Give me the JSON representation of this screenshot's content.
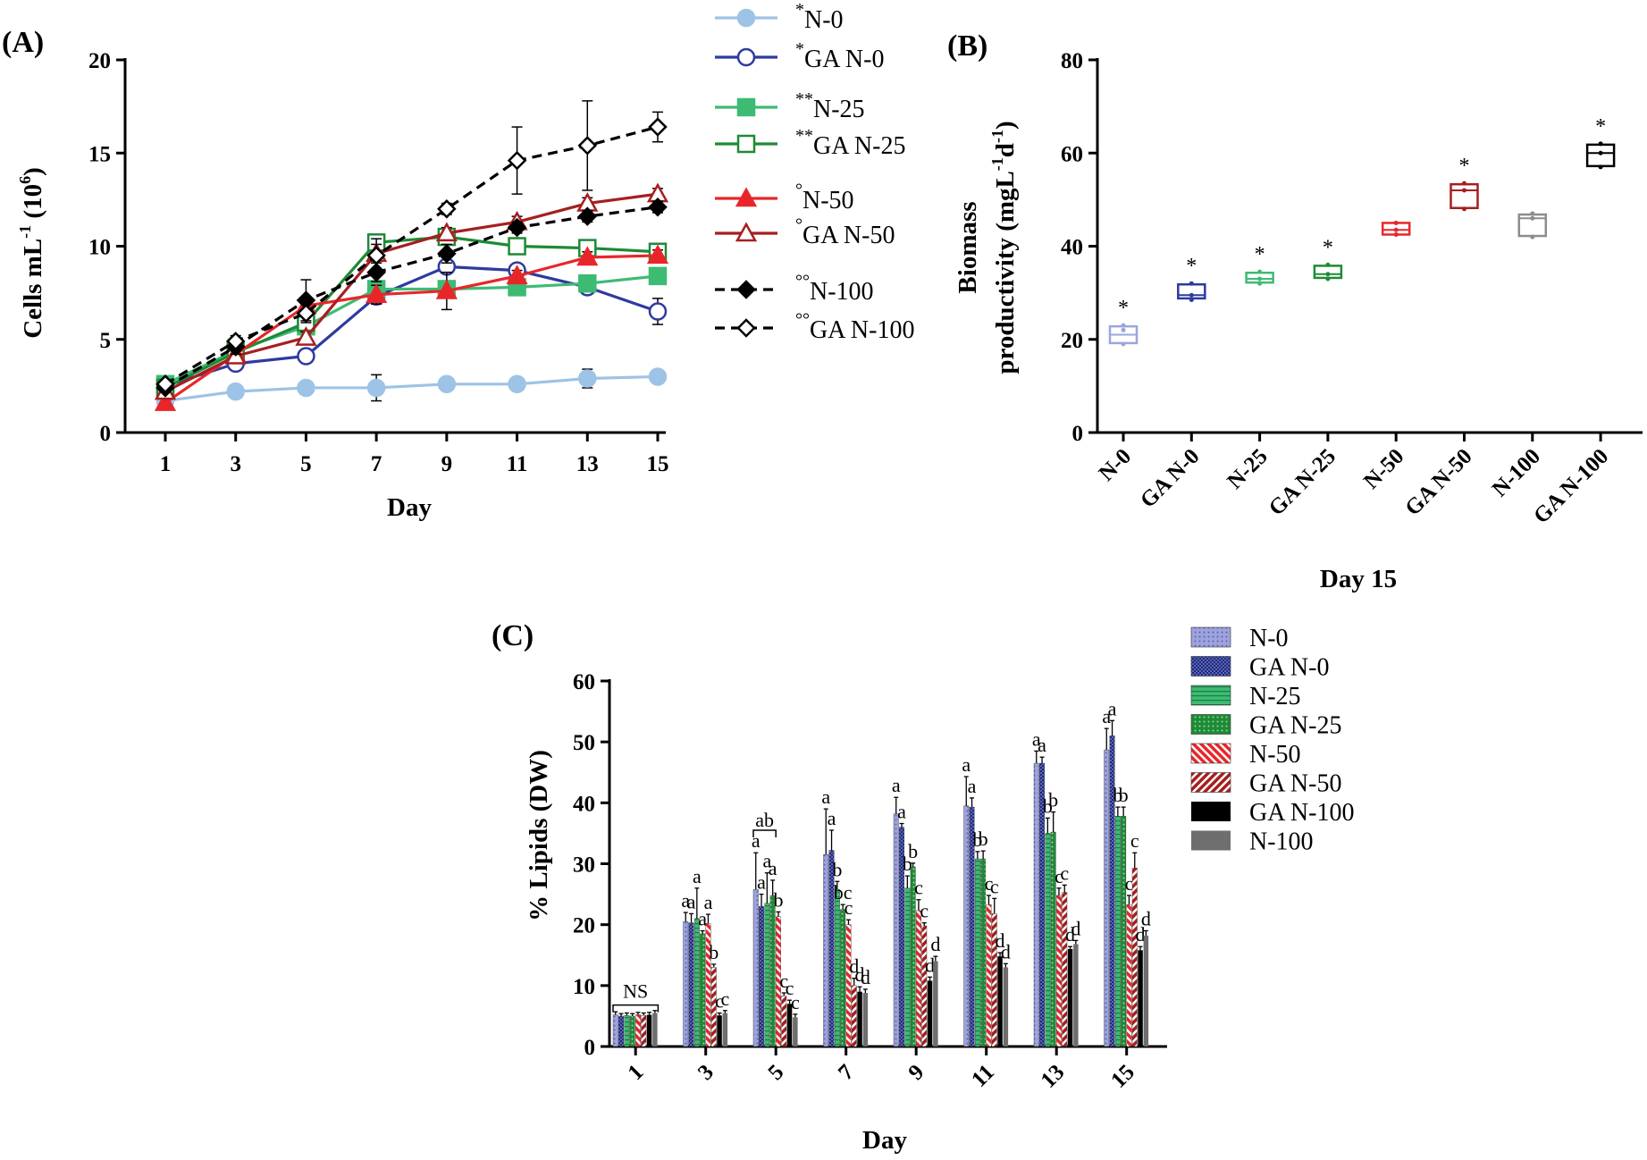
{
  "chart_data": [
    {
      "panel": "(A)",
      "type": "line",
      "xlabel": "Day",
      "ylabel": "Cells mL-1 (10^6)",
      "ylabel_parts": {
        "main": "Cells mL",
        "sup1": "-1",
        "open": " (10",
        "sup2": "6",
        "close": ")"
      },
      "x": [
        1,
        3,
        5,
        7,
        9,
        11,
        13,
        15
      ],
      "xticks": [
        "1",
        "3",
        "5",
        "7",
        "9",
        "11",
        "13",
        "15"
      ],
      "ylim": [
        0,
        20
      ],
      "yticks": [
        "0",
        "5",
        "10",
        "15",
        "20"
      ],
      "series": [
        {
          "name": "N-0",
          "prefix": "*",
          "color": "#9dc3e6",
          "marker": "filled-circle",
          "dash": false,
          "values": [
            1.7,
            2.2,
            2.4,
            2.4,
            2.6,
            2.6,
            2.9,
            3.0
          ],
          "errors": [
            0.1,
            0.1,
            0.1,
            0.7,
            0.1,
            0.1,
            0.5,
            0.1
          ]
        },
        {
          "name": "GA N-0",
          "prefix": "*",
          "color": "#2e3a9e",
          "marker": "open-circle",
          "dash": false,
          "values": [
            2.5,
            3.7,
            4.1,
            7.3,
            8.9,
            8.7,
            7.8,
            6.5
          ],
          "errors": [
            0.1,
            0.2,
            0.2,
            0.4,
            0.3,
            0.3,
            0.3,
            0.7
          ]
        },
        {
          "name": "N-25",
          "prefix": "**",
          "color": "#3dbb73",
          "marker": "filled-square",
          "dash": false,
          "values": [
            2.6,
            4.4,
            5.7,
            7.7,
            7.7,
            7.8,
            8.0,
            8.4
          ],
          "errors": [
            0.1,
            0.3,
            0.3,
            0.3,
            0.3,
            0.3,
            0.3,
            0.3
          ]
        },
        {
          "name": "GA N-25",
          "prefix": "**",
          "color": "#1e8a36",
          "marker": "open-square",
          "dash": false,
          "values": [
            2.4,
            4.3,
            5.9,
            10.2,
            10.5,
            10.0,
            9.9,
            9.7
          ],
          "errors": [
            0.1,
            0.3,
            0.3,
            0.4,
            0.4,
            0.3,
            0.3,
            0.3
          ]
        },
        {
          "name": "N-50",
          "prefix": "°",
          "color": "#e8262a",
          "marker": "filled-triangle",
          "dash": false,
          "values": [
            1.6,
            4.2,
            6.8,
            7.4,
            7.6,
            8.4,
            9.4,
            9.5
          ],
          "errors": [
            0.1,
            0.3,
            0.4,
            0.5,
            1.0,
            0.3,
            0.3,
            0.3
          ]
        },
        {
          "name": "GA N-50",
          "prefix": "°",
          "color": "#a51f1f",
          "marker": "open-triangle",
          "dash": false,
          "values": [
            2.2,
            4.1,
            5.1,
            9.6,
            10.7,
            11.3,
            12.3,
            12.8
          ],
          "errors": [
            0.1,
            0.3,
            0.3,
            0.5,
            0.3,
            0.3,
            0.3,
            0.3
          ]
        },
        {
          "name": "N-100",
          "prefix": "°°",
          "color": "#000000",
          "marker": "filled-diamond",
          "dash": true,
          "values": [
            2.4,
            4.6,
            7.1,
            8.6,
            9.6,
            11.0,
            11.6,
            12.1
          ],
          "errors": [
            0.1,
            0.4,
            1.1,
            0.5,
            0.5,
            0.3,
            0.3,
            0.3
          ]
        },
        {
          "name": "GA N-100",
          "prefix": "°°",
          "color": "#000000",
          "marker": "open-diamond",
          "dash": true,
          "values": [
            2.6,
            4.9,
            6.4,
            9.5,
            12.0,
            14.6,
            15.4,
            16.4
          ],
          "errors": [
            0.1,
            0.3,
            0.5,
            0.9,
            0.3,
            1.8,
            2.4,
            0.8
          ]
        }
      ]
    },
    {
      "panel": "(B)",
      "type": "box",
      "title_below": "Day 15",
      "ylabel_line1": "Biomass",
      "ylabel_line2_parts": {
        "main": "productivity (mgL",
        "sup1": "-1",
        "mid": "d",
        "sup2": "-1",
        "close": ")"
      },
      "categories": [
        "N-0",
        "GA N-0",
        "N-25",
        "GA N-25",
        "N-50",
        "GA N-50",
        "N-100",
        "GA N-100"
      ],
      "colors": [
        "#9ca6dc",
        "#2e3a9e",
        "#3dbb73",
        "#1e8a36",
        "#e8262a",
        "#a51f1f",
        "#8c8c8c",
        "#000000"
      ],
      "ylim": [
        0,
        80
      ],
      "yticks": [
        "0",
        "20",
        "40",
        "60",
        "80"
      ],
      "boxes": [
        {
          "min": 19,
          "q1": 19.2,
          "median": 21,
          "q3": 22.8,
          "max": 23,
          "points": [
            19,
            22,
            23
          ]
        },
        {
          "min": 28.5,
          "q1": 28.8,
          "median": 29.5,
          "q3": 31.8,
          "max": 32,
          "points": [
            28.5,
            29.5,
            32
          ]
        },
        {
          "min": 32,
          "q1": 32.2,
          "median": 33,
          "q3": 34.3,
          "max": 34.5,
          "points": [
            32,
            33,
            34.5
          ]
        },
        {
          "min": 33,
          "q1": 33.2,
          "median": 34,
          "q3": 35.8,
          "max": 36,
          "points": [
            33,
            34,
            36
          ]
        },
        {
          "min": 42.5,
          "q1": 42.5,
          "median": 43.5,
          "q3": 45,
          "max": 45,
          "points": [
            42.5,
            43.5,
            45
          ]
        },
        {
          "min": 48,
          "q1": 48.2,
          "median": 52,
          "q3": 53.3,
          "max": 53.5,
          "points": [
            48,
            52,
            53.5
          ]
        },
        {
          "min": 42,
          "q1": 42.2,
          "median": 46,
          "q3": 46.8,
          "max": 47,
          "points": [
            42,
            46,
            47
          ]
        },
        {
          "min": 57,
          "q1": 57.2,
          "median": 60,
          "q3": 61.8,
          "max": 62,
          "points": [
            57,
            60,
            62
          ]
        }
      ],
      "annotations": [
        "*",
        "*",
        "*",
        "*",
        "",
        "*",
        "",
        "*"
      ]
    },
    {
      "panel": "(C)",
      "type": "bar",
      "xlabel": "Day",
      "ylabel": "% Lipids (DW)",
      "categories": [
        "1",
        "3",
        "5",
        "7",
        "9",
        "11",
        "13",
        "15"
      ],
      "ylim": [
        0,
        60
      ],
      "yticks": [
        "0",
        "10",
        "20",
        "30",
        "40",
        "50",
        "60"
      ],
      "series": [
        {
          "name": "N-0",
          "color": "#8e94d6",
          "pattern": "dots",
          "values": [
            5.2,
            20.5,
            25.8,
            31.5,
            38.2,
            39.5,
            46.5,
            48.7
          ],
          "errors": [
            0.5,
            1.5,
            6.0,
            7.5,
            2.7,
            4.8,
            2.0,
            3.5
          ],
          "letters": [
            "",
            "a",
            "a",
            "a",
            "a",
            "a",
            "a",
            "a"
          ]
        },
        {
          "name": "GA N-0",
          "color": "#202a70",
          "pattern": "checker",
          "values": [
            5.0,
            20.3,
            23.0,
            32.2,
            36.0,
            39.3,
            46.5,
            51.0
          ],
          "errors": [
            0.4,
            1.5,
            2.0,
            3.3,
            0.6,
            1.5,
            1.0,
            2.5
          ],
          "letters": [
            "",
            "a",
            "a",
            "a",
            "a",
            "a",
            "a",
            "a"
          ]
        },
        {
          "name": "N-25",
          "color": "#3dbb73",
          "pattern": "hlines",
          "values": [
            5.1,
            21.0,
            23.5,
            25.8,
            26.0,
            30.8,
            35.0,
            37.8
          ],
          "errors": [
            0.4,
            5.0,
            5.0,
            1.3,
            2.0,
            1.2,
            2.5,
            1.5
          ],
          "letters": [
            "",
            "a",
            "a",
            "b",
            "b",
            "b",
            "b",
            "b"
          ]
        },
        {
          "name": "GA N-25",
          "color": "#1e8a36",
          "pattern": "dots",
          "values": [
            5.0,
            18.5,
            24.8,
            22.5,
            29.5,
            30.8,
            35.2,
            37.8
          ],
          "errors": [
            0.4,
            0.5,
            2.5,
            0.8,
            0.6,
            1.3,
            3.3,
            1.5
          ],
          "letters": [
            "",
            "a",
            "a",
            "bc",
            "b",
            "b",
            "b",
            "b"
          ]
        },
        {
          "name": "N-50",
          "color": "#e8262a",
          "pattern": "diag",
          "values": [
            5.2,
            20.2,
            21.3,
            20.0,
            22.3,
            23.3,
            24.8,
            23.3
          ],
          "errors": [
            0.4,
            1.5,
            0.8,
            0.8,
            1.8,
            1.5,
            1.2,
            1.5
          ],
          "letters": [
            "",
            "a",
            "b",
            "c",
            "c",
            "c",
            "c",
            "c"
          ]
        },
        {
          "name": "GA N-50",
          "color": "#a51f1f",
          "pattern": "diag",
          "values": [
            5.1,
            13.0,
            8.3,
            10.0,
            19.8,
            21.8,
            25.3,
            29.3
          ],
          "errors": [
            0.4,
            0.5,
            0.5,
            1.2,
            0.5,
            2.5,
            1.2,
            2.5
          ],
          "letters": [
            "",
            "b",
            "c",
            "d",
            "c",
            "c",
            "c",
            "c"
          ]
        },
        {
          "name": "GA N-100",
          "color": "#000000",
          "pattern": "solid",
          "values": [
            5.2,
            5.1,
            7.0,
            9.0,
            10.8,
            14.8,
            16.0,
            15.8
          ],
          "errors": [
            0.4,
            0.4,
            0.6,
            0.8,
            0.6,
            0.6,
            0.4,
            0.6
          ],
          "letters": [
            "",
            "c",
            "c",
            "d",
            "d",
            "d",
            "d",
            "d"
          ]
        },
        {
          "name": "N-100",
          "color": "#6e6e6e",
          "pattern": "solid",
          "values": [
            5.5,
            5.5,
            4.8,
            8.8,
            14.0,
            13.0,
            16.8,
            18.2
          ],
          "errors": [
            0.4,
            0.4,
            0.5,
            0.6,
            0.8,
            0.6,
            0.6,
            0.8
          ],
          "letters": [
            "",
            "c",
            "c",
            "d",
            "d",
            "d",
            "d",
            "d"
          ]
        }
      ],
      "annotations": {
        "day1_bracket": "NS",
        "day5_bracket": "ab"
      }
    }
  ]
}
